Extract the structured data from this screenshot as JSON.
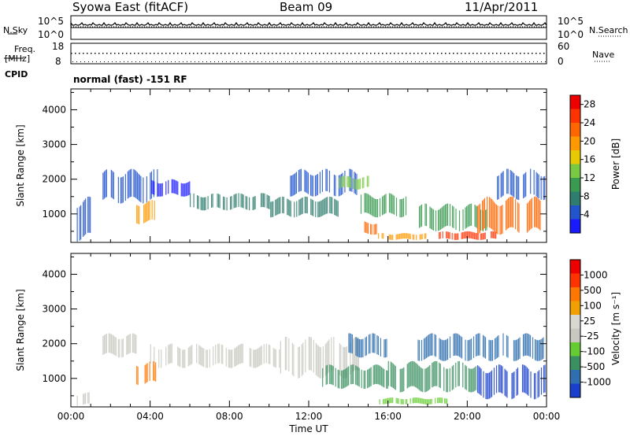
{
  "header": {
    "station": "Syowa East (fitACF)",
    "beam": "Beam 09",
    "date": "11/Apr/2011"
  },
  "status_panel": {
    "nsky_label": "N.Sky",
    "nsearch_label": "N.Search",
    "freq_label": "Freq.",
    "freq_unit": "[MHz]",
    "nave_label": "Nave",
    "cpid_label": "CPID",
    "cpid_text": "normal (fast) -151 RF",
    "noise_ticks": [
      "10^5",
      "10^0"
    ],
    "freq_ticks": [
      "18",
      "8"
    ],
    "nave_ticks": [
      "60",
      "0"
    ]
  },
  "chart_data": [
    {
      "type": "heatmap",
      "title": "",
      "xlabel": "",
      "ylabel": "Slant Range [km]",
      "x_ticks": [
        "00:00",
        "04:00",
        "08:00",
        "12:00",
        "16:00",
        "20:00",
        "00:00"
      ],
      "y_ticks": [
        1000,
        2000,
        3000,
        4000
      ],
      "ylim": [
        180,
        4600
      ],
      "colorbar": {
        "label": "Power [dB]",
        "ticks": [
          4,
          8,
          12,
          16,
          20,
          24,
          28
        ],
        "range": [
          0,
          30
        ],
        "colors": [
          "#1a1aff",
          "#2255cc",
          "#2e7d6e",
          "#3a9a50",
          "#7ac943",
          "#e8c800",
          "#ff9900",
          "#ff6600",
          "#ff3300",
          "#ee0000"
        ]
      },
      "regions": [
        {
          "t0": 0.3,
          "t1": 1.0,
          "r0": 200,
          "r1": 1500,
          "c": "#2255cc"
        },
        {
          "t0": 1.6,
          "t1": 4.4,
          "r0": 1300,
          "r1": 2300,
          "c": "#2255cc"
        },
        {
          "t0": 3.3,
          "t1": 4.2,
          "r0": 700,
          "r1": 1400,
          "c": "#ff9900"
        },
        {
          "t0": 4.0,
          "t1": 6.0,
          "r0": 1500,
          "r1": 2000,
          "c": "#1a1aff"
        },
        {
          "t0": 6.0,
          "t1": 10.0,
          "r0": 1100,
          "r1": 1600,
          "c": "#2e7d6e"
        },
        {
          "t0": 10.0,
          "t1": 13.5,
          "r0": 900,
          "r1": 1500,
          "c": "#2e7d6e"
        },
        {
          "t0": 11.0,
          "t1": 14.5,
          "r0": 1500,
          "r1": 2300,
          "c": "#2255cc"
        },
        {
          "t0": 13.5,
          "t1": 15.0,
          "r0": 1700,
          "r1": 2100,
          "c": "#7ac943"
        },
        {
          "t0": 14.5,
          "t1": 17.0,
          "r0": 900,
          "r1": 1600,
          "c": "#3a9a50"
        },
        {
          "t0": 14.8,
          "t1": 15.4,
          "r0": 400,
          "r1": 800,
          "c": "#ff6600"
        },
        {
          "t0": 15.5,
          "t1": 18.0,
          "r0": 250,
          "r1": 450,
          "c": "#ff9900"
        },
        {
          "t0": 17.5,
          "t1": 21.0,
          "r0": 500,
          "r1": 1300,
          "c": "#3a9a50"
        },
        {
          "t0": 18.5,
          "t1": 21.5,
          "r0": 250,
          "r1": 500,
          "c": "#ff3300"
        },
        {
          "t0": 20.5,
          "t1": 23.9,
          "r0": 400,
          "r1": 1500,
          "c": "#ff6600"
        },
        {
          "t0": 21.5,
          "t1": 23.9,
          "r0": 1400,
          "r1": 2300,
          "c": "#2255cc"
        }
      ]
    },
    {
      "type": "heatmap",
      "title": "",
      "xlabel": "Time UT",
      "ylabel": "Slant Range [km]",
      "x_ticks": [
        "00:00",
        "04:00",
        "08:00",
        "12:00",
        "16:00",
        "20:00",
        "00:00"
      ],
      "y_ticks": [
        1000,
        2000,
        3000,
        4000
      ],
      "ylim": [
        180,
        4600
      ],
      "colorbar": {
        "label": "Velocity [m s⁻¹]",
        "ticks": [
          "1000",
          "500",
          "100",
          "25",
          "-25",
          "-100",
          "-500",
          "-1000"
        ],
        "colors": [
          "#1a3fcc",
          "#2f6fb0",
          "#3a9060",
          "#66cc33",
          "#c8c8c0",
          "#d8d8d0",
          "#f0a000",
          "#ff7700",
          "#ff3300",
          "#ee0000"
        ]
      },
      "regions": [
        {
          "t0": 0.3,
          "t1": 1.0,
          "r0": 200,
          "r1": 600,
          "c": "#c8c8c0"
        },
        {
          "t0": 1.6,
          "t1": 3.3,
          "r0": 1600,
          "r1": 2300,
          "c": "#c8c8c0"
        },
        {
          "t0": 3.3,
          "t1": 4.3,
          "r0": 800,
          "r1": 1500,
          "c": "#ff7700"
        },
        {
          "t0": 4.0,
          "t1": 10.5,
          "r0": 1300,
          "r1": 2000,
          "c": "#c8c8c0"
        },
        {
          "t0": 10.5,
          "t1": 14.5,
          "r0": 1000,
          "r1": 2200,
          "c": "#c8c8c0"
        },
        {
          "t0": 12.5,
          "t1": 16.0,
          "r0": 700,
          "r1": 1400,
          "c": "#3a9060"
        },
        {
          "t0": 14.0,
          "t1": 16.0,
          "r0": 1600,
          "r1": 2300,
          "c": "#2f6fb0"
        },
        {
          "t0": 15.5,
          "t1": 19.0,
          "r0": 250,
          "r1": 450,
          "c": "#66cc33"
        },
        {
          "t0": 16.0,
          "t1": 20.5,
          "r0": 600,
          "r1": 1500,
          "c": "#3a9060"
        },
        {
          "t0": 17.5,
          "t1": 23.9,
          "r0": 1500,
          "r1": 2300,
          "c": "#2f6fb0"
        },
        {
          "t0": 20.5,
          "t1": 23.9,
          "r0": 400,
          "r1": 1400,
          "c": "#1a3fcc"
        }
      ]
    }
  ]
}
